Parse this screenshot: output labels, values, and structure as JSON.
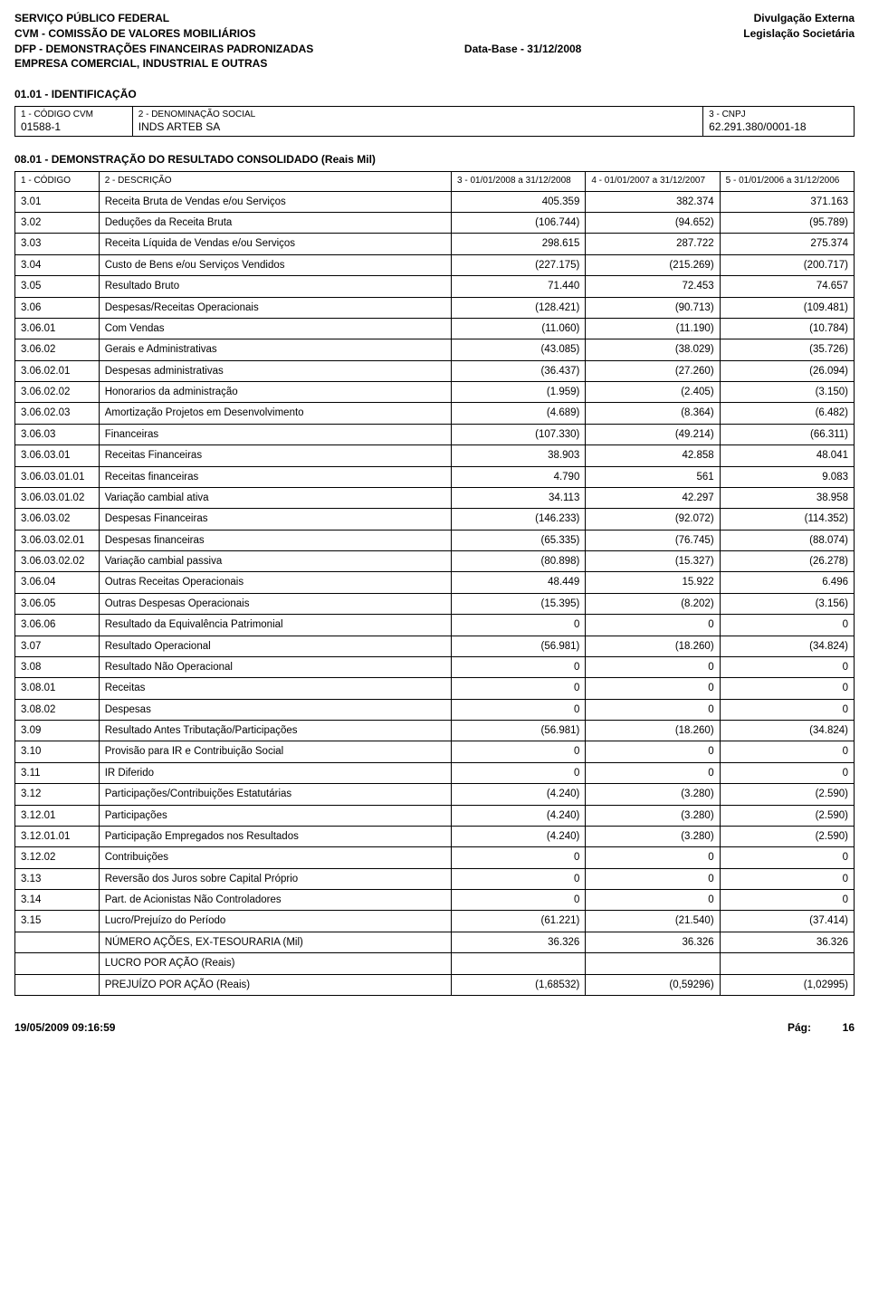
{
  "header": {
    "left": [
      "SERVIÇO PÚBLICO FEDERAL",
      "CVM - COMISSÃO DE VALORES MOBILIÁRIOS",
      "DFP - DEMONSTRAÇÕES FINANCEIRAS PADRONIZADAS",
      "EMPRESA COMERCIAL, INDUSTRIAL E OUTRAS"
    ],
    "center": "Data-Base - 31/12/2008",
    "right": [
      "Divulgação Externa",
      "",
      "Legislação Societária",
      ""
    ]
  },
  "identSection": {
    "title": "01.01 - IDENTIFICAÇÃO",
    "labels": {
      "cvm": "1 - CÓDIGO CVM",
      "denom": "2 - DENOMINAÇÃO SOCIAL",
      "cnpj": "3 - CNPJ"
    },
    "values": {
      "cvm": "01588-1",
      "denom": "INDS ARTEB SA",
      "cnpj": "62.291.380/0001-18"
    }
  },
  "resultSection": {
    "title": "08.01 - DEMONSTRAÇÃO DO RESULTADO CONSOLIDADO (Reais Mil)",
    "columns": [
      "1 - CÓDIGO",
      "2 - DESCRIÇÃO",
      "3 - 01/01/2008 a 31/12/2008",
      "4 - 01/01/2007 a 31/12/2007",
      "5 - 01/01/2006 a 31/12/2006"
    ],
    "rows": [
      [
        "3.01",
        "Receita Bruta de Vendas e/ou Serviços",
        "405.359",
        "382.374",
        "371.163"
      ],
      [
        "3.02",
        "Deduções da Receita Bruta",
        "(106.744)",
        "(94.652)",
        "(95.789)"
      ],
      [
        "3.03",
        "Receita Líquida de Vendas e/ou Serviços",
        "298.615",
        "287.722",
        "275.374"
      ],
      [
        "3.04",
        "Custo de Bens e/ou Serviços Vendidos",
        "(227.175)",
        "(215.269)",
        "(200.717)"
      ],
      [
        "3.05",
        "Resultado Bruto",
        "71.440",
        "72.453",
        "74.657"
      ],
      [
        "3.06",
        "Despesas/Receitas Operacionais",
        "(128.421)",
        "(90.713)",
        "(109.481)"
      ],
      [
        "3.06.01",
        "Com Vendas",
        "(11.060)",
        "(11.190)",
        "(10.784)"
      ],
      [
        "3.06.02",
        "Gerais e Administrativas",
        "(43.085)",
        "(38.029)",
        "(35.726)"
      ],
      [
        "3.06.02.01",
        "Despesas administrativas",
        "(36.437)",
        "(27.260)",
        "(26.094)"
      ],
      [
        "3.06.02.02",
        "Honorarios da administração",
        "(1.959)",
        "(2.405)",
        "(3.150)"
      ],
      [
        "3.06.02.03",
        "Amortização Projetos em Desenvolvimento",
        "(4.689)",
        "(8.364)",
        "(6.482)"
      ],
      [
        "3.06.03",
        "Financeiras",
        "(107.330)",
        "(49.214)",
        "(66.311)"
      ],
      [
        "3.06.03.01",
        "Receitas Financeiras",
        "38.903",
        "42.858",
        "48.041"
      ],
      [
        "3.06.03.01.01",
        "Receitas financeiras",
        "4.790",
        "561",
        "9.083"
      ],
      [
        "3.06.03.01.02",
        "Variação cambial ativa",
        "34.113",
        "42.297",
        "38.958"
      ],
      [
        "3.06.03.02",
        "Despesas Financeiras",
        "(146.233)",
        "(92.072)",
        "(114.352)"
      ],
      [
        "3.06.03.02.01",
        "Despesas financeiras",
        "(65.335)",
        "(76.745)",
        "(88.074)"
      ],
      [
        "3.06.03.02.02",
        "Variação cambial passiva",
        "(80.898)",
        "(15.327)",
        "(26.278)"
      ],
      [
        "3.06.04",
        "Outras Receitas Operacionais",
        "48.449",
        "15.922",
        "6.496"
      ],
      [
        "3.06.05",
        "Outras Despesas Operacionais",
        "(15.395)",
        "(8.202)",
        "(3.156)"
      ],
      [
        "3.06.06",
        "Resultado da Equivalência Patrimonial",
        "0",
        "0",
        "0"
      ],
      [
        "3.07",
        "Resultado Operacional",
        "(56.981)",
        "(18.260)",
        "(34.824)"
      ],
      [
        "3.08",
        "Resultado Não Operacional",
        "0",
        "0",
        "0"
      ],
      [
        "3.08.01",
        "Receitas",
        "0",
        "0",
        "0"
      ],
      [
        "3.08.02",
        "Despesas",
        "0",
        "0",
        "0"
      ],
      [
        "3.09",
        "Resultado Antes Tributação/Participações",
        "(56.981)",
        "(18.260)",
        "(34.824)"
      ],
      [
        "3.10",
        "Provisão para IR e Contribuição Social",
        "0",
        "0",
        "0"
      ],
      [
        "3.11",
        "IR Diferido",
        "0",
        "0",
        "0"
      ],
      [
        "3.12",
        "Participações/Contribuições Estatutárias",
        "(4.240)",
        "(3.280)",
        "(2.590)"
      ],
      [
        "3.12.01",
        "Participações",
        "(4.240)",
        "(3.280)",
        "(2.590)"
      ],
      [
        "3.12.01.01",
        "Participação Empregados nos Resultados",
        "(4.240)",
        "(3.280)",
        "(2.590)"
      ],
      [
        "3.12.02",
        "Contribuições",
        "0",
        "0",
        "0"
      ],
      [
        "3.13",
        "Reversão dos Juros sobre Capital Próprio",
        "0",
        "0",
        "0"
      ],
      [
        "3.14",
        "Part. de Acionistas Não Controladores",
        "0",
        "0",
        "0"
      ],
      [
        "3.15",
        "Lucro/Prejuízo do Período",
        "(61.221)",
        "(21.540)",
        "(37.414)"
      ],
      [
        "",
        "NÚMERO AÇÕES, EX-TESOURARIA (Mil)",
        "36.326",
        "36.326",
        "36.326"
      ],
      [
        "",
        "LUCRO POR AÇÃO  (Reais)",
        "",
        "",
        ""
      ],
      [
        "",
        "PREJUÍZO POR AÇÃO  (Reais)",
        "(1,68532)",
        "(0,59296)",
        "(1,02995)"
      ]
    ]
  },
  "footer": {
    "timestamp": "19/05/2009 09:16:59",
    "page_label": "Pág:",
    "page_num": "16"
  }
}
